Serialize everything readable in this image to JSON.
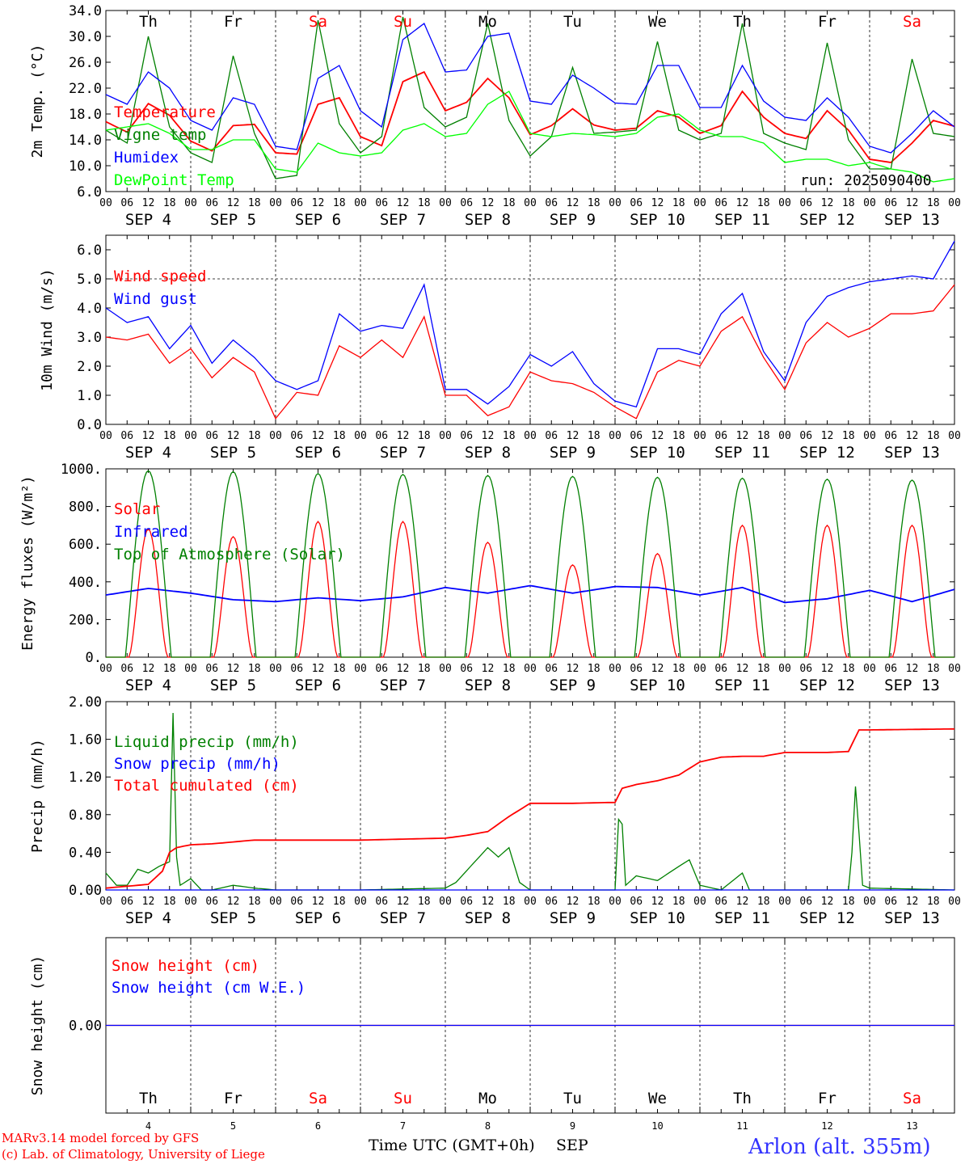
{
  "run_label": "run: 2025090400",
  "colors": {
    "red": "#ff0000",
    "green": "#008000",
    "blue": "#0000ff",
    "lime": "#00ff00",
    "axis": "#000000"
  },
  "days": {
    "names": [
      "Th",
      "Fr",
      "Sa",
      "Su",
      "Mo",
      "Tu",
      "We",
      "Th",
      "Fr",
      "Sa"
    ],
    "weekend": [
      false,
      false,
      true,
      true,
      false,
      false,
      false,
      false,
      false,
      true
    ],
    "dates": [
      "SEP  4",
      "SEP  5",
      "SEP  6",
      "SEP  7",
      "SEP  8",
      "SEP  9",
      "SEP 10",
      "SEP 11",
      "SEP 12",
      "SEP 13"
    ],
    "numbers": [
      "4",
      "5",
      "6",
      "7",
      "8",
      "9",
      "10",
      "11",
      "12",
      "13"
    ],
    "hour_ticks": [
      "00",
      "06",
      "12",
      "18"
    ],
    "end_tick": "00"
  },
  "footer": {
    "line1": "MARv3.14 model forced by GFS",
    "line2": "(c) Lab. of Climatology, University of Liege",
    "xlabel": "Time UTC (GMT+0h)",
    "month": "SEP",
    "station": "Arlon (alt. 355m)"
  },
  "chart_data": [
    {
      "type": "line",
      "ylabel": "2m Temp. (°C)",
      "ylim": [
        6.0,
        34.0
      ],
      "yticks": [
        "6.0",
        "10.0",
        "14.0",
        "18.0",
        "22.0",
        "26.0",
        "30.0",
        "34.0"
      ],
      "x_unit": "hours since SEP 4 00 UTC",
      "series": [
        {
          "name": "Temperature",
          "color": "#ff0000",
          "x": [
            0,
            6,
            12,
            18,
            24,
            30,
            36,
            42,
            48,
            54,
            60,
            66,
            72,
            78,
            84,
            90,
            96,
            102,
            108,
            114,
            120,
            126,
            132,
            138,
            144,
            150,
            156,
            162,
            168,
            174,
            180,
            186,
            192,
            198,
            204,
            210,
            216,
            222,
            228,
            234,
            240
          ],
          "y": [
            16.8,
            15.2,
            19.6,
            17.8,
            13.8,
            12.3,
            16.2,
            16.4,
            12.0,
            11.8,
            19.5,
            20.5,
            14.5,
            13.1,
            23.0,
            24.5,
            18.5,
            19.8,
            23.5,
            20.5,
            14.8,
            16.2,
            18.8,
            16.3,
            15.5,
            15.8,
            18.5,
            17.5,
            15.0,
            16.2,
            21.5,
            17.5,
            15.0,
            14.2,
            18.5,
            15.5,
            11.0,
            10.5,
            13.5,
            17.0,
            16.1
          ]
        },
        {
          "name": "Vigne temp",
          "color": "#008000",
          "x": [
            0,
            6,
            12,
            18,
            24,
            30,
            36,
            42,
            48,
            54,
            60,
            66,
            72,
            78,
            84,
            90,
            96,
            102,
            108,
            114,
            120,
            126,
            132,
            138,
            144,
            150,
            156,
            162,
            168,
            174,
            180,
            186,
            192,
            198,
            204,
            210,
            216,
            222,
            228,
            234,
            240
          ],
          "y": [
            15.5,
            13.5,
            30.0,
            16.0,
            12.0,
            10.5,
            27.0,
            15.0,
            8.0,
            8.5,
            32.5,
            16.5,
            12.0,
            14.5,
            33.0,
            19.0,
            16.0,
            17.5,
            32.0,
            17.0,
            11.5,
            14.5,
            25.2,
            15.0,
            15.2,
            15.5,
            29.2,
            15.5,
            14.0,
            15.0,
            32.0,
            15.0,
            13.5,
            12.5,
            29.0,
            14.0,
            9.5,
            9.5,
            26.5,
            15.0,
            14.5
          ]
        },
        {
          "name": "Humidex",
          "color": "#0000ff",
          "x": [
            0,
            6,
            12,
            18,
            24,
            30,
            36,
            42,
            48,
            54,
            60,
            66,
            72,
            78,
            84,
            90,
            96,
            102,
            108,
            114,
            120,
            126,
            132,
            138,
            144,
            150,
            156,
            162,
            168,
            174,
            180,
            186,
            192,
            198,
            204,
            210,
            216,
            222,
            228,
            234,
            240
          ],
          "y": [
            21.0,
            19.5,
            24.5,
            22.0,
            17.0,
            15.5,
            20.5,
            19.5,
            13.0,
            12.5,
            23.5,
            25.5,
            18.5,
            16.0,
            29.5,
            32.0,
            24.5,
            24.8,
            30.0,
            30.5,
            20.0,
            19.5,
            24.0,
            22.0,
            19.7,
            19.5,
            25.5,
            25.5,
            19.0,
            19.0,
            25.5,
            20.0,
            17.5,
            17.0,
            20.5,
            17.5,
            13.0,
            12.0,
            15.0,
            18.5,
            16.0
          ]
        },
        {
          "name": "DewPoint Temp",
          "color": "#00ff00",
          "x": [
            0,
            6,
            12,
            18,
            24,
            30,
            36,
            42,
            48,
            54,
            60,
            66,
            72,
            78,
            84,
            90,
            96,
            102,
            108,
            114,
            120,
            126,
            132,
            138,
            144,
            150,
            156,
            162,
            168,
            174,
            180,
            186,
            192,
            198,
            204,
            210,
            216,
            222,
            228,
            234,
            240
          ],
          "y": [
            15.5,
            16.0,
            16.5,
            15.0,
            12.5,
            12.5,
            14.0,
            14.0,
            9.5,
            9.0,
            13.5,
            12.0,
            11.5,
            12.0,
            15.5,
            16.5,
            14.5,
            15.0,
            19.5,
            21.5,
            15.0,
            14.5,
            15.0,
            14.8,
            14.5,
            15.0,
            17.5,
            18.0,
            15.5,
            14.5,
            14.5,
            13.5,
            10.5,
            11.0,
            11.0,
            10.0,
            10.5,
            9.5,
            9.0,
            7.5,
            8.0
          ]
        }
      ]
    },
    {
      "type": "line",
      "ylabel": "10m Wind (m/s)",
      "ylim": [
        0.0,
        6.5
      ],
      "yticks": [
        "0.0",
        "1.0",
        "2.0",
        "3.0",
        "4.0",
        "5.0",
        "6.0"
      ],
      "reference_line": 5.0,
      "x_unit": "hours since SEP 4 00 UTC",
      "series": [
        {
          "name": "Wind speed",
          "color": "#ff0000",
          "x": [
            0,
            6,
            12,
            18,
            24,
            30,
            36,
            42,
            48,
            54,
            60,
            66,
            72,
            78,
            84,
            90,
            96,
            102,
            108,
            114,
            120,
            126,
            132,
            138,
            144,
            150,
            156,
            162,
            168,
            174,
            180,
            186,
            192,
            198,
            204,
            210,
            216,
            222,
            228,
            234,
            240
          ],
          "y": [
            3.0,
            2.9,
            3.1,
            2.1,
            2.6,
            1.6,
            2.3,
            1.8,
            0.2,
            1.1,
            1.0,
            2.7,
            2.3,
            2.9,
            2.3,
            3.7,
            1.0,
            1.0,
            0.3,
            0.6,
            1.8,
            1.5,
            1.4,
            1.1,
            0.6,
            0.2,
            1.8,
            2.2,
            2.0,
            3.2,
            3.7,
            2.3,
            1.2,
            2.8,
            3.5,
            3.0,
            3.3,
            3.8,
            3.8,
            3.9,
            4.8
          ]
        },
        {
          "name": "Wind gust",
          "color": "#0000ff",
          "x": [
            0,
            6,
            12,
            18,
            24,
            30,
            36,
            42,
            48,
            54,
            60,
            66,
            72,
            78,
            84,
            90,
            96,
            102,
            108,
            114,
            120,
            126,
            132,
            138,
            144,
            150,
            156,
            162,
            168,
            174,
            180,
            186,
            192,
            198,
            204,
            210,
            216,
            222,
            228,
            234,
            240
          ],
          "y": [
            4.0,
            3.5,
            3.7,
            2.6,
            3.4,
            2.1,
            2.9,
            2.3,
            1.5,
            1.2,
            1.5,
            3.8,
            3.2,
            3.4,
            3.3,
            4.8,
            1.2,
            1.2,
            0.7,
            1.3,
            2.4,
            2.0,
            2.5,
            1.4,
            0.8,
            0.6,
            2.6,
            2.6,
            2.4,
            3.8,
            4.5,
            2.5,
            1.5,
            3.5,
            4.4,
            4.7,
            4.9,
            5.0,
            5.1,
            5.0,
            6.3
          ]
        }
      ]
    },
    {
      "type": "line",
      "ylabel": "Energy fluxes (W/m²)",
      "ylim": [
        0,
        1000
      ],
      "yticks": [
        "0.",
        "200.",
        "400.",
        "600.",
        "800.",
        "1000."
      ],
      "x_unit": "hours since SEP 4 00 UTC",
      "series": [
        {
          "name": "Solar",
          "color": "#ff0000",
          "peak_hour": 12,
          "daily_peak": [
            680,
            640,
            720,
            720,
            610,
            490,
            550,
            700,
            700,
            700
          ]
        },
        {
          "name": "Infrared",
          "color": "#0000ff",
          "x": [
            0,
            12,
            24,
            36,
            48,
            60,
            72,
            84,
            96,
            108,
            120,
            132,
            144,
            156,
            168,
            180,
            192,
            204,
            216,
            228,
            240
          ],
          "y": [
            330,
            365,
            340,
            305,
            295,
            315,
            300,
            320,
            370,
            340,
            380,
            340,
            375,
            370,
            330,
            370,
            290,
            310,
            355,
            295,
            360
          ]
        },
        {
          "name": "Top of Atmosphere (Solar)",
          "color": "#008000",
          "peak_hour": 12,
          "daily_peak": [
            990,
            985,
            975,
            970,
            965,
            960,
            955,
            950,
            945,
            940
          ]
        }
      ]
    },
    {
      "type": "line",
      "ylabel": "Precip (mm/h)",
      "ylim": [
        0.0,
        2.0
      ],
      "yticks": [
        "0.00",
        "0.40",
        "0.80",
        "1.20",
        "1.60",
        "2.00"
      ],
      "x_unit": "hours since SEP 4 00 UTC",
      "series": [
        {
          "name": "Liquid precip (mm/h)",
          "color": "#008000",
          "x": [
            0,
            3,
            6,
            9,
            12,
            15,
            18,
            19,
            20,
            21,
            24,
            27,
            30,
            36,
            42,
            48,
            60,
            72,
            96,
            99,
            108,
            111,
            114,
            117,
            120,
            132,
            144,
            145,
            146,
            147,
            150,
            156,
            162,
            165,
            168,
            174,
            180,
            182,
            186,
            192,
            210,
            211,
            212,
            213,
            214,
            216,
            240
          ],
          "y": [
            0.18,
            0.05,
            0.05,
            0.22,
            0.18,
            0.25,
            0.3,
            1.88,
            0.35,
            0.05,
            0.12,
            0.0,
            0.0,
            0.05,
            0.02,
            0.0,
            0.0,
            0.0,
            0.02,
            0.08,
            0.45,
            0.35,
            0.45,
            0.08,
            0.0,
            0.0,
            0.0,
            0.75,
            0.7,
            0.05,
            0.15,
            0.1,
            0.25,
            0.32,
            0.05,
            0.0,
            0.18,
            0.0,
            0.0,
            0.0,
            0.0,
            0.4,
            1.1,
            0.6,
            0.05,
            0.02,
            0.0
          ]
        },
        {
          "name": "Snow precip (mm/h)",
          "color": "#0000ff",
          "x": [
            0,
            240
          ],
          "y": [
            0.0,
            0.0
          ]
        },
        {
          "name": "Total cumulated (cm)",
          "color": "#ff0000",
          "x": [
            0,
            6,
            12,
            16,
            18,
            20,
            24,
            30,
            36,
            42,
            48,
            72,
            96,
            102,
            108,
            114,
            120,
            132,
            144,
            146,
            150,
            156,
            162,
            168,
            174,
            180,
            186,
            192,
            204,
            210,
            213,
            216,
            240
          ],
          "y": [
            0.02,
            0.04,
            0.06,
            0.2,
            0.4,
            0.45,
            0.48,
            0.49,
            0.51,
            0.53,
            0.53,
            0.53,
            0.55,
            0.58,
            0.62,
            0.78,
            0.92,
            0.92,
            0.93,
            1.08,
            1.12,
            1.16,
            1.22,
            1.36,
            1.41,
            1.42,
            1.42,
            1.46,
            1.46,
            1.47,
            1.7,
            1.7,
            1.71
          ]
        }
      ]
    },
    {
      "type": "line",
      "ylabel": "Snow height (cm)",
      "yticks": [
        "0.00"
      ],
      "x_unit": "hours since SEP 4 00 UTC",
      "series": [
        {
          "name": "Snow height (cm)",
          "color": "#ff0000",
          "x": [
            0,
            240
          ],
          "y": [
            0.0,
            0.0
          ]
        },
        {
          "name": "Snow height (cm W.E.)",
          "color": "#0000ff",
          "x": [
            0,
            240
          ],
          "y": [
            0.0,
            0.0
          ]
        }
      ]
    }
  ]
}
